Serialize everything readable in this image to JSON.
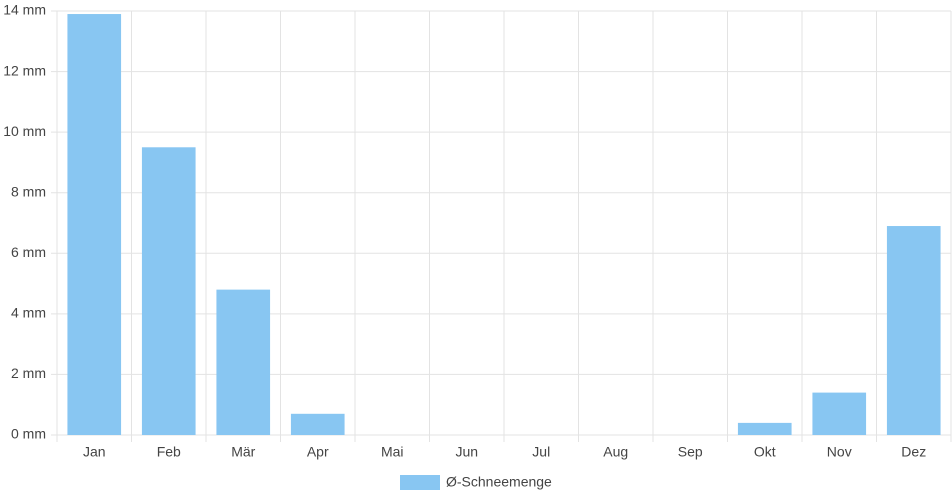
{
  "chart_data": {
    "type": "bar",
    "categories": [
      "Jan",
      "Feb",
      "Mär",
      "Apr",
      "Mai",
      "Jun",
      "Jul",
      "Aug",
      "Sep",
      "Okt",
      "Nov",
      "Dez"
    ],
    "series": [
      {
        "name": "Ø-Schneemenge",
        "color": "#88c6f2",
        "values": [
          13.9,
          9.5,
          4.8,
          0.7,
          0,
          0,
          0,
          0,
          0,
          0.4,
          1.4,
          6.9
        ]
      }
    ],
    "ylim": [
      0,
      14
    ],
    "yticks": [
      {
        "value": 0,
        "label": "0 mm"
      },
      {
        "value": 2,
        "label": "2 mm"
      },
      {
        "value": 4,
        "label": "4 mm"
      },
      {
        "value": 6,
        "label": "6 mm"
      },
      {
        "value": 8,
        "label": "8 mm"
      },
      {
        "value": 10,
        "label": "10 mm"
      },
      {
        "value": 12,
        "label": "12 mm"
      },
      {
        "value": 14,
        "label": "14 mm"
      }
    ],
    "grid": true,
    "legend": "bottom"
  }
}
